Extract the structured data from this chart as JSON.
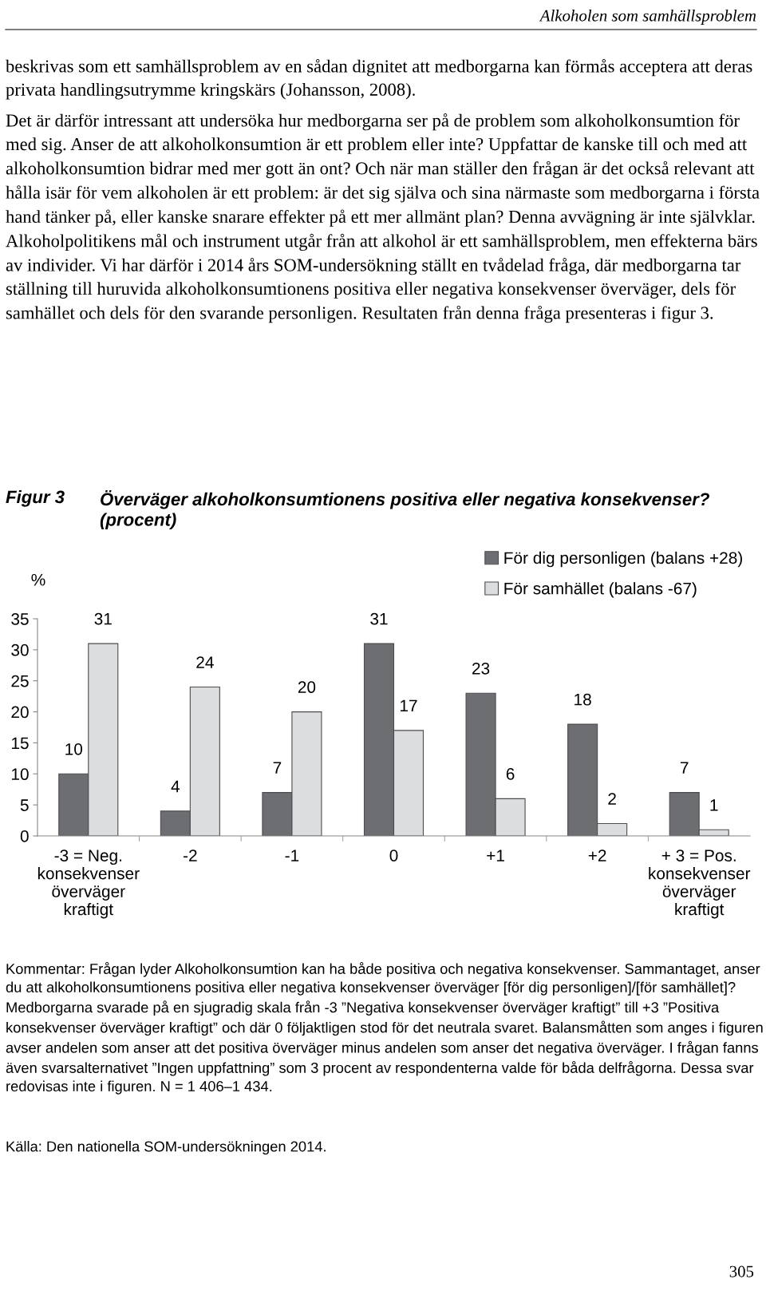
{
  "chart_data": {
    "type": "bar",
    "title": "Överväger alkoholkonsumtionens positiva eller negativa konsekvenser? (procent)",
    "ylabel": "%",
    "categories": [
      "-3 = Neg.\nkonsekvenser\növerväger\nkraftigt",
      "-2",
      "-1",
      "0",
      "+1",
      "+2",
      "+ 3 = Pos.\nkonsekvenser\növerväger\nkraftigt"
    ],
    "series": [
      {
        "name": "För dig personligen (balans +28)",
        "color": "#6d6e71",
        "values": [
          10,
          4,
          7,
          31,
          23,
          18,
          7
        ]
      },
      {
        "name": "För samhället (balans -67)",
        "color": "#dcdddf",
        "values": [
          31,
          24,
          20,
          17,
          6,
          2,
          1
        ]
      }
    ],
    "ylim": [
      0,
      35
    ],
    "yticks": [
      0,
      5,
      10,
      15,
      20,
      25,
      30,
      35
    ],
    "data_labels": true,
    "legend": "top right",
    "grid": false,
    "annotations": [
      "Alkoholen som samhällsproblem",
      "beskrivas som ett samhällsproblem av en sådan dignitet att medborgarna kan förmås acceptera att deras privata handlingsutrymme kringskärs (Johansson, 2008).",
      "Det är därför intressant att undersöka hur medborgarna ser på de problem som alkoholkonsumtion för med sig. Anser de att alkoholkonsumtion är ett problem eller inte? Uppfattar de kanske till och med att alkoholkonsumtion bidrar med mer gott än ont? Och när man ställer den frågan är det också relevant att hålla isär för vem alkoholen är ett problem: är det sig själva och sina närmaste som medborgarna i första hand tänker på, eller kanske snarare effekter på ett mer allmänt plan? Denna avvägning är inte självklar. Alkoholpolitikens mål och instrument utgår från att alkohol är ett samhällsproblem, men effekterna bärs av individer. Vi har därför i 2014 års SOM-undersökning ställt en tvådelad fråga, där medborgarna tar ställning till huruvida alkoholkonsumtionens positiva eller negativa konsekvenser överväger, dels för samhället och dels för den svarande personligen. Resultaten från denna fråga presenteras i figur 3.",
      "Figur 3",
      "Kommentar: Frågan lyder Alkoholkonsumtion kan ha både positiva och negativa konsekvenser. Sammantaget, anser du att alkoholkonsumtionens positiva eller negativa konsekvenser överväger [för dig personligen]/[för samhället]? Medborgarna svarade på en sjugradig skala från -3 ”Negativa konsekvenser överväger kraftigt” till +3 ”Positiva konsekvenser överväger kraftigt” och där 0 följaktligen stod för det neutrala svaret. Balansmåtten som anges i figuren avser andelen som anser att det positiva överväger minus andelen som anser det negativa överväger. I frågan fanns även svarsalternativet ”Ingen uppfattning” som 3 procent av respondenterna valde för båda delfrågorna. Dessa svar redovisas inte i figuren. N = 1 406–1 434.",
      "Källa: Den nationella SOM-undersökningen 2014.",
      "305"
    ]
  }
}
